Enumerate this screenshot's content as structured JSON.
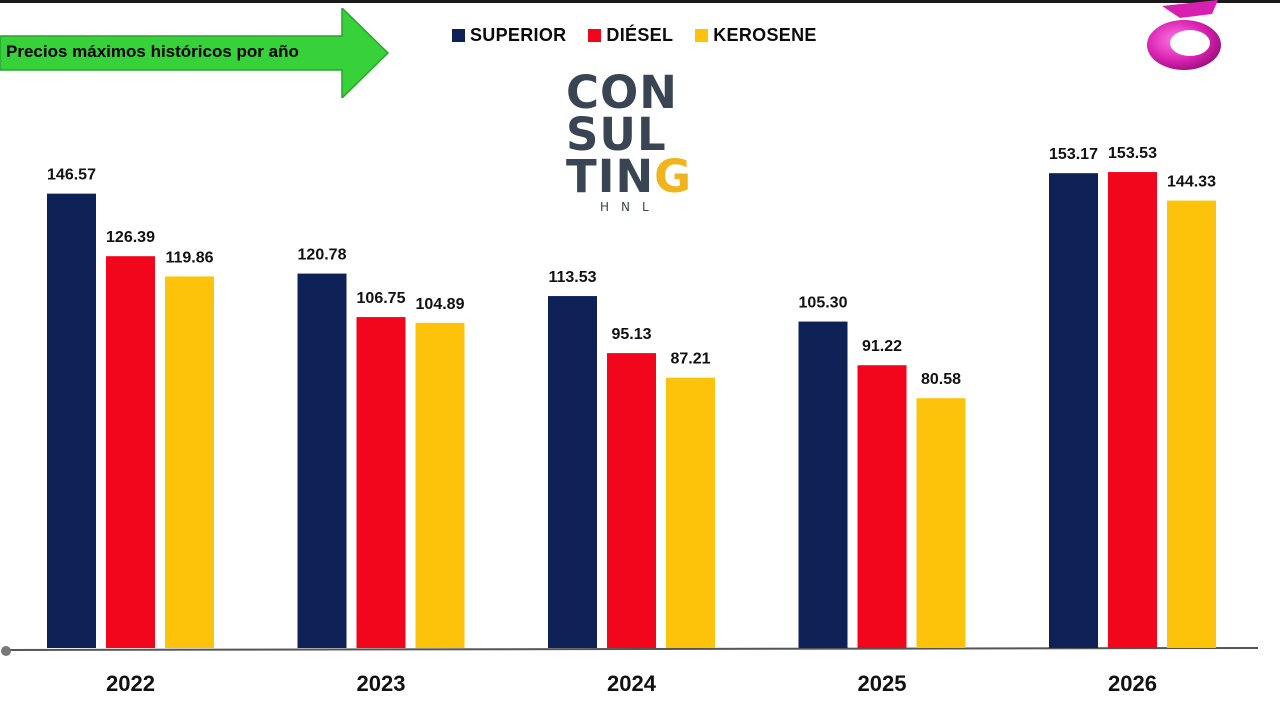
{
  "header": {
    "title": "Precios máximos históricos por año"
  },
  "logo": {
    "line1": "CON",
    "line2": "SUL",
    "line3_main": "TIN",
    "line3_accent": "G",
    "sub": "HNL"
  },
  "colors": {
    "superior": "#0e2157",
    "diesel": "#f2061b",
    "kerosene": "#fcc30a",
    "arrow": "#37d13a",
    "axis": "#555555"
  },
  "chart_data": {
    "type": "bar",
    "categories": [
      "2022",
      "2023",
      "2024",
      "2025",
      "2026"
    ],
    "series": [
      {
        "name": "SUPERIOR",
        "values": [
          146.57,
          120.78,
          113.53,
          105.3,
          153.17
        ],
        "labels": [
          "146.57",
          "120.78",
          "113.53",
          "105.30",
          "153.17"
        ]
      },
      {
        "name": "DIÉSEL",
        "values": [
          126.39,
          106.75,
          95.13,
          91.22,
          153.53
        ],
        "labels": [
          "126.39",
          "106.75",
          "95.13",
          "91.22",
          "153.53"
        ]
      },
      {
        "name": "KEROSENE",
        "values": [
          119.86,
          104.89,
          87.21,
          80.58,
          144.33
        ],
        "labels": [
          "119.86",
          "104.89",
          "87.21",
          "80.58",
          "144.33"
        ]
      }
    ],
    "title": "Precios máximos históricos por año",
    "xlabel": "",
    "ylabel": "",
    "ylim": [
      0,
      160
    ],
    "grid": false,
    "legend": "top-center"
  }
}
